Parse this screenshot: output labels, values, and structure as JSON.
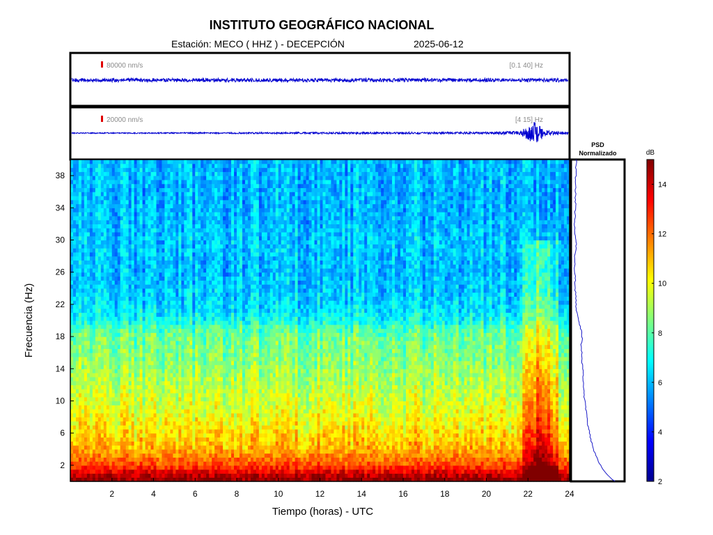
{
  "header": {
    "title": "INSTITUTO GEOGRÁFICO NACIONAL",
    "station": "Estación:  MECO ( HHZ ) - DECEPCIÓN",
    "date": "2025-06-12"
  },
  "chart_data": [
    {
      "type": "line",
      "name": "seismogram-broadband",
      "scale_label": "80000 nm/s",
      "band_label": "[0.1 40] Hz",
      "x_units": "hours UTC",
      "xlim": [
        0,
        24
      ],
      "amplitude_profile": {
        "x": [
          0,
          24
        ],
        "relative_amplitude": [
          0.15,
          0.15
        ]
      }
    },
    {
      "type": "line",
      "name": "seismogram-filtered",
      "scale_label": "20000 nm/s",
      "band_label": "[4 15] Hz",
      "x_units": "hours UTC",
      "xlim": [
        0,
        24
      ],
      "amplitude_profile": {
        "x": [
          0,
          5,
          10,
          14,
          18,
          20,
          21.6,
          22,
          22.3,
          22.7,
          23.2,
          24
        ],
        "relative_amplitude": [
          0.04,
          0.05,
          0.07,
          0.08,
          0.08,
          0.09,
          0.15,
          0.55,
          0.9,
          0.45,
          0.15,
          0.1
        ]
      }
    },
    {
      "type": "heatmap",
      "name": "spectrogram",
      "xlabel": "Tiempo (horas) - UTC",
      "ylabel": "Frecuencia  (Hz)",
      "xlim": [
        0,
        24
      ],
      "ylim": [
        0,
        40
      ],
      "xticks": [
        2,
        4,
        6,
        8,
        10,
        12,
        14,
        16,
        18,
        20,
        22,
        24
      ],
      "yticks": [
        2,
        6,
        10,
        14,
        18,
        22,
        26,
        30,
        34,
        38
      ],
      "colorbar": {
        "label": "dB",
        "range": [
          2,
          15
        ],
        "ticks": [
          2,
          4,
          6,
          8,
          10,
          12,
          14
        ],
        "colormap": "jet"
      },
      "freq_profile_db": {
        "freq": [
          0,
          1,
          2,
          4,
          6,
          8,
          10,
          12,
          14,
          16,
          18,
          19,
          20,
          22,
          26,
          30,
          34,
          40
        ],
        "db": [
          15,
          14,
          12.5,
          11.2,
          10.5,
          10.0,
          9.6,
          9.2,
          8.8,
          8.5,
          8.3,
          7.8,
          7.0,
          6.4,
          6.0,
          6.2,
          5.9,
          6.0
        ]
      },
      "time_bursts": [
        {
          "t_start": 21.8,
          "t_end": 23.4,
          "db_increase": 3.5,
          "max_freq": 30
        }
      ]
    },
    {
      "type": "line",
      "name": "psd-normalizado",
      "title": "PSD\nNormalizado",
      "freq": [
        0,
        1,
        2,
        3,
        4,
        5,
        6,
        7,
        8,
        9,
        10,
        11,
        12,
        13,
        14,
        15,
        16,
        17,
        18,
        19,
        20,
        21,
        22,
        24,
        26,
        28,
        29.5,
        31,
        34,
        38,
        40
      ],
      "value": [
        1.0,
        0.78,
        0.66,
        0.58,
        0.5,
        0.45,
        0.41,
        0.37,
        0.34,
        0.31,
        0.29,
        0.28,
        0.26,
        0.25,
        0.24,
        0.23,
        0.22,
        0.21,
        0.23,
        0.2,
        0.14,
        0.1,
        0.08,
        0.07,
        0.06,
        0.05,
        0.1,
        0.05,
        0.07,
        0.08,
        0.09
      ]
    }
  ]
}
